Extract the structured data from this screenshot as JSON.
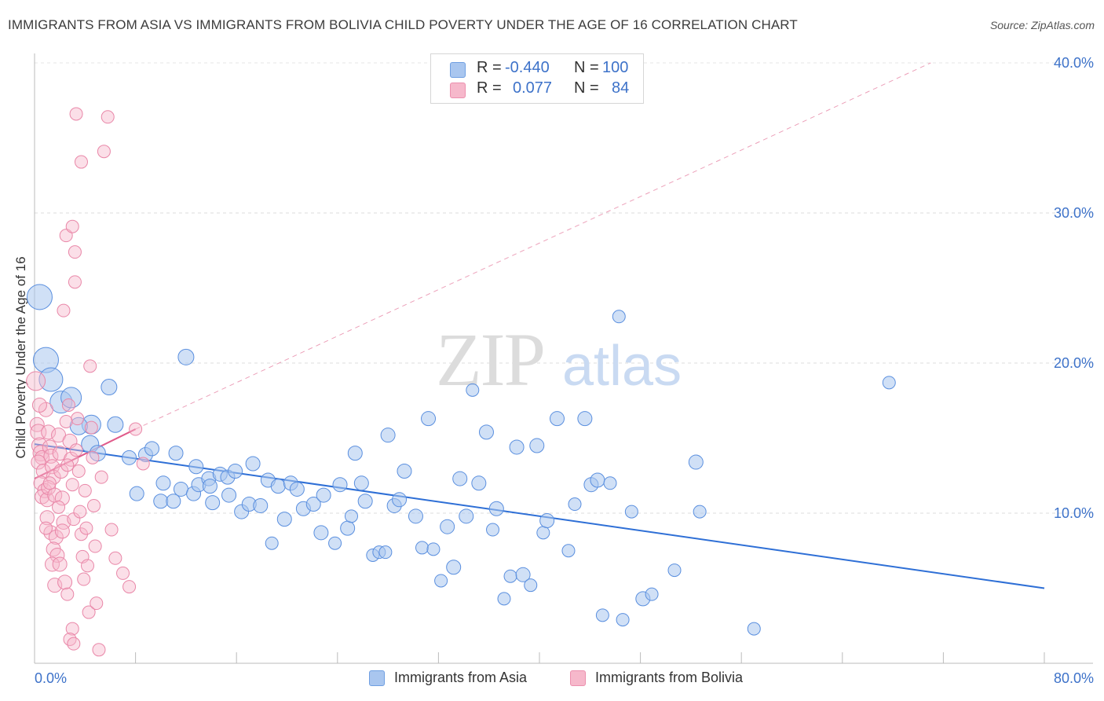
{
  "title": "IMMIGRANTS FROM ASIA VS IMMIGRANTS FROM BOLIVIA CHILD POVERTY UNDER THE AGE OF 16 CORRELATION CHART",
  "source": "Source: ZipAtlas.com",
  "watermark": {
    "zip": "ZIP",
    "atlas": "atlas"
  },
  "legend": {
    "rows": [
      {
        "r_label": "R =",
        "r_value": "-0.440",
        "n_label": "N =",
        "n_value": "100",
        "color": "#a9c6ef"
      },
      {
        "r_label": "R =",
        "r_value": "0.077",
        "n_label": "N =",
        "n_value": "84",
        "color": "#f6b8cb"
      }
    ]
  },
  "bottom_legend": [
    {
      "label": "Immigrants from Asia",
      "color": "#a9c6ef"
    },
    {
      "label": "Immigrants from Bolivia",
      "color": "#f6b8cb"
    }
  ],
  "chart_data": {
    "type": "scatter",
    "title": "IMMIGRANTS FROM ASIA VS IMMIGRANTS FROM BOLIVIA CHILD POVERTY UNDER THE AGE OF 16 CORRELATION CHART",
    "xlabel": "",
    "ylabel": "Child Poverty Under the Age of 16",
    "xlim": [
      0,
      80
    ],
    "ylim": [
      0,
      40
    ],
    "x_tick_labels": [
      "0.0%",
      "80.0%"
    ],
    "y_tick_labels": [
      {
        "value": 10,
        "label": "10.0%"
      },
      {
        "value": 20,
        "label": "20.0%"
      },
      {
        "value": 30,
        "label": "30.0%"
      },
      {
        "value": 40,
        "label": "40.0%"
      }
    ],
    "grid": true,
    "legend_placement": "top-center",
    "series": [
      {
        "name": "Immigrants from Asia",
        "color": "#5a8fdf",
        "fill": "#a9c6ef",
        "trend": {
          "x": [
            0,
            80
          ],
          "y": [
            14.6,
            5.0
          ],
          "color": "#2e6fd6"
        },
        "points": [
          {
            "x": 0.4,
            "y": 24.4,
            "s": 16
          },
          {
            "x": 0.9,
            "y": 20.2,
            "s": 16
          },
          {
            "x": 1.3,
            "y": 18.9,
            "s": 15
          },
          {
            "x": 2.1,
            "y": 17.4,
            "s": 14
          },
          {
            "x": 2.9,
            "y": 17.7,
            "s": 13
          },
          {
            "x": 4.5,
            "y": 15.9,
            "s": 12
          },
          {
            "x": 3.5,
            "y": 15.8,
            "s": 11
          },
          {
            "x": 4.4,
            "y": 14.6,
            "s": 11
          },
          {
            "x": 5.0,
            "y": 14.0,
            "s": 10
          },
          {
            "x": 5.9,
            "y": 18.4,
            "s": 10
          },
          {
            "x": 6.4,
            "y": 15.9,
            "s": 10
          },
          {
            "x": 7.5,
            "y": 13.7,
            "s": 9
          },
          {
            "x": 8.1,
            "y": 11.3,
            "s": 9
          },
          {
            "x": 8.8,
            "y": 13.9,
            "s": 9
          },
          {
            "x": 9.3,
            "y": 14.3,
            "s": 9
          },
          {
            "x": 10.0,
            "y": 10.8,
            "s": 9
          },
          {
            "x": 10.2,
            "y": 12.0,
            "s": 9
          },
          {
            "x": 11.0,
            "y": 10.8,
            "s": 9
          },
          {
            "x": 11.2,
            "y": 14.0,
            "s": 9
          },
          {
            "x": 11.6,
            "y": 11.6,
            "s": 9
          },
          {
            "x": 12.0,
            "y": 20.4,
            "s": 10
          },
          {
            "x": 12.6,
            "y": 11.3,
            "s": 9
          },
          {
            "x": 12.8,
            "y": 13.1,
            "s": 9
          },
          {
            "x": 13.0,
            "y": 11.9,
            "s": 9
          },
          {
            "x": 13.8,
            "y": 12.3,
            "s": 9
          },
          {
            "x": 13.9,
            "y": 11.8,
            "s": 9
          },
          {
            "x": 14.1,
            "y": 10.7,
            "s": 9
          },
          {
            "x": 14.7,
            "y": 12.6,
            "s": 9
          },
          {
            "x": 15.3,
            "y": 12.4,
            "s": 9
          },
          {
            "x": 15.4,
            "y": 11.2,
            "s": 9
          },
          {
            "x": 15.9,
            "y": 12.8,
            "s": 9
          },
          {
            "x": 16.4,
            "y": 10.1,
            "s": 9
          },
          {
            "x": 17.0,
            "y": 10.6,
            "s": 9
          },
          {
            "x": 17.3,
            "y": 13.3,
            "s": 9
          },
          {
            "x": 17.9,
            "y": 10.5,
            "s": 9
          },
          {
            "x": 18.5,
            "y": 12.2,
            "s": 9
          },
          {
            "x": 18.8,
            "y": 8.0,
            "s": 8
          },
          {
            "x": 19.3,
            "y": 11.8,
            "s": 9
          },
          {
            "x": 19.8,
            "y": 9.6,
            "s": 9
          },
          {
            "x": 20.3,
            "y": 12.0,
            "s": 9
          },
          {
            "x": 20.8,
            "y": 11.6,
            "s": 9
          },
          {
            "x": 21.3,
            "y": 10.3,
            "s": 9
          },
          {
            "x": 22.1,
            "y": 10.6,
            "s": 9
          },
          {
            "x": 22.7,
            "y": 8.7,
            "s": 9
          },
          {
            "x": 22.9,
            "y": 11.2,
            "s": 9
          },
          {
            "x": 23.8,
            "y": 8.0,
            "s": 8
          },
          {
            "x": 24.2,
            "y": 11.9,
            "s": 9
          },
          {
            "x": 24.8,
            "y": 9.0,
            "s": 9
          },
          {
            "x": 25.1,
            "y": 9.8,
            "s": 8
          },
          {
            "x": 25.4,
            "y": 14.0,
            "s": 9
          },
          {
            "x": 25.9,
            "y": 12.0,
            "s": 9
          },
          {
            "x": 26.2,
            "y": 10.8,
            "s": 9
          },
          {
            "x": 26.8,
            "y": 7.2,
            "s": 8
          },
          {
            "x": 27.3,
            "y": 7.4,
            "s": 8
          },
          {
            "x": 27.8,
            "y": 7.4,
            "s": 8
          },
          {
            "x": 28.0,
            "y": 15.2,
            "s": 9
          },
          {
            "x": 28.5,
            "y": 10.5,
            "s": 9
          },
          {
            "x": 28.9,
            "y": 10.9,
            "s": 9
          },
          {
            "x": 29.3,
            "y": 12.8,
            "s": 9
          },
          {
            "x": 30.2,
            "y": 9.8,
            "s": 9
          },
          {
            "x": 30.7,
            "y": 7.7,
            "s": 8
          },
          {
            "x": 31.2,
            "y": 16.3,
            "s": 9
          },
          {
            "x": 31.6,
            "y": 7.6,
            "s": 8
          },
          {
            "x": 32.2,
            "y": 5.5,
            "s": 8
          },
          {
            "x": 32.7,
            "y": 9.1,
            "s": 9
          },
          {
            "x": 33.2,
            "y": 6.4,
            "s": 9
          },
          {
            "x": 33.7,
            "y": 12.3,
            "s": 9
          },
          {
            "x": 34.2,
            "y": 9.8,
            "s": 9
          },
          {
            "x": 34.7,
            "y": 18.2,
            "s": 8
          },
          {
            "x": 35.2,
            "y": 12.0,
            "s": 9
          },
          {
            "x": 35.8,
            "y": 15.4,
            "s": 9
          },
          {
            "x": 36.3,
            "y": 8.9,
            "s": 8
          },
          {
            "x": 36.6,
            "y": 10.3,
            "s": 9
          },
          {
            "x": 37.2,
            "y": 4.3,
            "s": 8
          },
          {
            "x": 37.7,
            "y": 5.8,
            "s": 8
          },
          {
            "x": 38.2,
            "y": 14.4,
            "s": 9
          },
          {
            "x": 38.7,
            "y": 5.9,
            "s": 9
          },
          {
            "x": 39.3,
            "y": 5.2,
            "s": 8
          },
          {
            "x": 39.8,
            "y": 14.5,
            "s": 9
          },
          {
            "x": 40.3,
            "y": 8.7,
            "s": 8
          },
          {
            "x": 40.6,
            "y": 9.5,
            "s": 9
          },
          {
            "x": 41.4,
            "y": 16.3,
            "s": 9
          },
          {
            "x": 42.3,
            "y": 7.5,
            "s": 8
          },
          {
            "x": 42.8,
            "y": 10.6,
            "s": 8
          },
          {
            "x": 43.6,
            "y": 16.3,
            "s": 9
          },
          {
            "x": 44.1,
            "y": 11.9,
            "s": 9
          },
          {
            "x": 44.6,
            "y": 12.2,
            "s": 9
          },
          {
            "x": 45.0,
            "y": 3.2,
            "s": 8
          },
          {
            "x": 45.6,
            "y": 12.0,
            "s": 8
          },
          {
            "x": 46.3,
            "y": 23.1,
            "s": 8
          },
          {
            "x": 46.6,
            "y": 2.9,
            "s": 8
          },
          {
            "x": 47.3,
            "y": 10.1,
            "s": 8
          },
          {
            "x": 48.2,
            "y": 4.3,
            "s": 9
          },
          {
            "x": 48.9,
            "y": 4.6,
            "s": 8
          },
          {
            "x": 50.7,
            "y": 6.2,
            "s": 8
          },
          {
            "x": 52.4,
            "y": 13.4,
            "s": 9
          },
          {
            "x": 52.7,
            "y": 10.1,
            "s": 8
          },
          {
            "x": 57.0,
            "y": 2.3,
            "s": 8
          },
          {
            "x": 67.7,
            "y": 18.7,
            "s": 8
          }
        ]
      },
      {
        "name": "Immigrants from Bolivia",
        "color": "#e987a8",
        "fill": "#f6b8cb",
        "trend": {
          "x": [
            0,
            8
          ],
          "y": [
            12.3,
            15.6
          ],
          "color": "#e05a8a",
          "dashed_extension": {
            "x": [
              8,
              71
            ],
            "y": [
              15.6,
              40.0
            ]
          }
        },
        "points": [
          {
            "x": 0.1,
            "y": 18.8,
            "s": 12
          },
          {
            "x": 0.2,
            "y": 15.9,
            "s": 9
          },
          {
            "x": 0.3,
            "y": 15.4,
            "s": 10
          },
          {
            "x": 0.4,
            "y": 14.5,
            "s": 10
          },
          {
            "x": 0.5,
            "y": 14.0,
            "s": 10
          },
          {
            "x": 0.6,
            "y": 13.7,
            "s": 9
          },
          {
            "x": 0.3,
            "y": 13.4,
            "s": 9
          },
          {
            "x": 0.7,
            "y": 12.8,
            "s": 9
          },
          {
            "x": 0.5,
            "y": 12.0,
            "s": 9
          },
          {
            "x": 0.8,
            "y": 11.5,
            "s": 9
          },
          {
            "x": 0.6,
            "y": 11.1,
            "s": 9
          },
          {
            "x": 1.0,
            "y": 10.9,
            "s": 9
          },
          {
            "x": 0.9,
            "y": 16.9,
            "s": 9
          },
          {
            "x": 1.1,
            "y": 15.4,
            "s": 9
          },
          {
            "x": 1.2,
            "y": 14.4,
            "s": 9
          },
          {
            "x": 1.3,
            "y": 13.8,
            "s": 9
          },
          {
            "x": 1.4,
            "y": 13.1,
            "s": 9
          },
          {
            "x": 1.5,
            "y": 12.4,
            "s": 9
          },
          {
            "x": 1.1,
            "y": 11.7,
            "s": 9
          },
          {
            "x": 1.6,
            "y": 11.2,
            "s": 9
          },
          {
            "x": 1.0,
            "y": 9.7,
            "s": 9
          },
          {
            "x": 1.3,
            "y": 8.7,
            "s": 9
          },
          {
            "x": 1.7,
            "y": 8.4,
            "s": 9
          },
          {
            "x": 1.5,
            "y": 7.6,
            "s": 9
          },
          {
            "x": 1.8,
            "y": 7.2,
            "s": 9
          },
          {
            "x": 1.4,
            "y": 6.6,
            "s": 9
          },
          {
            "x": 1.6,
            "y": 5.2,
            "s": 9
          },
          {
            "x": 1.9,
            "y": 15.2,
            "s": 9
          },
          {
            "x": 2.0,
            "y": 14.0,
            "s": 9
          },
          {
            "x": 2.1,
            "y": 12.8,
            "s": 9
          },
          {
            "x": 2.2,
            "y": 11.0,
            "s": 9
          },
          {
            "x": 2.3,
            "y": 9.4,
            "s": 9
          },
          {
            "x": 2.2,
            "y": 8.8,
            "s": 9
          },
          {
            "x": 2.0,
            "y": 6.6,
            "s": 9
          },
          {
            "x": 2.4,
            "y": 5.4,
            "s": 9
          },
          {
            "x": 2.6,
            "y": 4.6,
            "s": 8
          },
          {
            "x": 2.3,
            "y": 23.5,
            "s": 8
          },
          {
            "x": 2.5,
            "y": 28.5,
            "s": 8
          },
          {
            "x": 2.7,
            "y": 17.2,
            "s": 8
          },
          {
            "x": 2.8,
            "y": 14.8,
            "s": 9
          },
          {
            "x": 2.9,
            "y": 13.6,
            "s": 9
          },
          {
            "x": 3.0,
            "y": 11.9,
            "s": 8
          },
          {
            "x": 3.1,
            "y": 9.6,
            "s": 8
          },
          {
            "x": 3.2,
            "y": 25.4,
            "s": 8
          },
          {
            "x": 3.2,
            "y": 27.4,
            "s": 8
          },
          {
            "x": 3.0,
            "y": 29.1,
            "s": 8
          },
          {
            "x": 3.3,
            "y": 36.6,
            "s": 8
          },
          {
            "x": 3.4,
            "y": 16.3,
            "s": 8
          },
          {
            "x": 3.5,
            "y": 12.8,
            "s": 8
          },
          {
            "x": 3.6,
            "y": 10.1,
            "s": 8
          },
          {
            "x": 3.7,
            "y": 8.6,
            "s": 8
          },
          {
            "x": 3.8,
            "y": 7.1,
            "s": 8
          },
          {
            "x": 3.9,
            "y": 5.6,
            "s": 8
          },
          {
            "x": 3.7,
            "y": 33.4,
            "s": 8
          },
          {
            "x": 3.0,
            "y": 2.3,
            "s": 8
          },
          {
            "x": 2.8,
            "y": 1.6,
            "s": 8
          },
          {
            "x": 3.1,
            "y": 1.3,
            "s": 8
          },
          {
            "x": 4.0,
            "y": 11.5,
            "s": 8
          },
          {
            "x": 4.1,
            "y": 9.0,
            "s": 8
          },
          {
            "x": 4.2,
            "y": 6.5,
            "s": 8
          },
          {
            "x": 4.3,
            "y": 3.4,
            "s": 8
          },
          {
            "x": 4.4,
            "y": 19.8,
            "s": 8
          },
          {
            "x": 4.5,
            "y": 15.7,
            "s": 8
          },
          {
            "x": 4.6,
            "y": 13.7,
            "s": 8
          },
          {
            "x": 4.7,
            "y": 10.5,
            "s": 8
          },
          {
            "x": 4.8,
            "y": 7.8,
            "s": 8
          },
          {
            "x": 4.9,
            "y": 4.0,
            "s": 8
          },
          {
            "x": 5.1,
            "y": 0.9,
            "s": 8
          },
          {
            "x": 5.3,
            "y": 12.4,
            "s": 8
          },
          {
            "x": 5.5,
            "y": 34.1,
            "s": 8
          },
          {
            "x": 5.8,
            "y": 36.4,
            "s": 8
          },
          {
            "x": 6.1,
            "y": 8.9,
            "s": 8
          },
          {
            "x": 6.4,
            "y": 7.0,
            "s": 8
          },
          {
            "x": 7.0,
            "y": 6.0,
            "s": 8
          },
          {
            "x": 7.5,
            "y": 5.1,
            "s": 8
          },
          {
            "x": 8.0,
            "y": 15.6,
            "s": 8
          },
          {
            "x": 8.6,
            "y": 13.3,
            "s": 8
          },
          {
            "x": 2.5,
            "y": 16.1,
            "s": 8
          },
          {
            "x": 1.2,
            "y": 12.0,
            "s": 8
          },
          {
            "x": 0.9,
            "y": 9.0,
            "s": 8
          },
          {
            "x": 1.9,
            "y": 10.4,
            "s": 8
          },
          {
            "x": 2.6,
            "y": 13.2,
            "s": 8
          },
          {
            "x": 3.3,
            "y": 14.2,
            "s": 8
          },
          {
            "x": 0.4,
            "y": 17.2,
            "s": 9
          }
        ]
      }
    ]
  }
}
